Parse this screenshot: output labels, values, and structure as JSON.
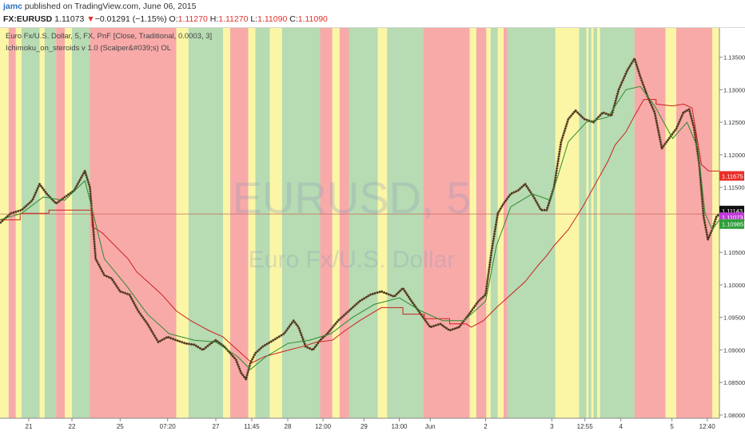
{
  "header": {
    "author": "jamc",
    "published": "published on TradingView.com, June 06, 2015",
    "symbol": "FX:EURUSD",
    "last": "1.11073",
    "change_arrow": "▼",
    "change": "−0.01291 (−1.15%)",
    "o_label": "O:",
    "o_value": "1.11270",
    "h_label": "H:",
    "h_value": "1.11270",
    "l_label": "L:",
    "l_value": "1.11090",
    "c_label": "C:",
    "c_value": "1.11090"
  },
  "legend": {
    "series_line": "Euro Fx/U.S. Dollar, 5, FX, PnF [Close, Traditional, 0.0003, 3]",
    "indicator_line": "Ichimoku_on_steroids v 1.0 (Scalper&#039;s) OL"
  },
  "watermark": {
    "symbol": "EURUSD, 5",
    "name": "Euro Fx/U.S. Dollar"
  },
  "colors": {
    "green_band": "#b7dbb2",
    "red_band": "#f8aaa9",
    "yellow_band": "#fbf6a6",
    "price": "#6b4a2a",
    "red_line": "#cc2020",
    "green_line": "#2e8b2e",
    "axis_bg": "#ffffff",
    "hline": "#c46a5a"
  },
  "chart_data": {
    "type": "line",
    "ylim": [
      1.0795,
      1.1395
    ],
    "y_ticks": [
      "1.13500",
      "1.13000",
      "1.12500",
      "1.12000",
      "1.11500",
      "1.11000",
      "1.10500",
      "1.10000",
      "1.09500",
      "1.09000",
      "1.08500",
      "1.08000"
    ],
    "x_ticks": [
      {
        "label": "21",
        "t": 0.04
      },
      {
        "label": "22",
        "t": 0.1
      },
      {
        "label": "25",
        "t": 0.167
      },
      {
        "label": "07:20",
        "t": 0.233
      },
      {
        "label": "27",
        "t": 0.3
      },
      {
        "label": "11:45",
        "t": 0.35
      },
      {
        "label": "28",
        "t": 0.4
      },
      {
        "label": "12:00",
        "t": 0.449
      },
      {
        "label": "29",
        "t": 0.506
      },
      {
        "label": "13:00",
        "t": 0.555
      },
      {
        "label": "Jun",
        "t": 0.598
      },
      {
        "label": "2",
        "t": 0.675
      },
      {
        "label": "3",
        "t": 0.767
      },
      {
        "label": "12:55",
        "t": 0.813
      },
      {
        "label": "4",
        "t": 0.863
      },
      {
        "label": "5",
        "t": 0.934
      },
      {
        "label": "12:40",
        "t": 0.983
      }
    ],
    "bands": [
      {
        "start": 0.0,
        "end": 0.012,
        "c": "yellow"
      },
      {
        "start": 0.012,
        "end": 0.022,
        "c": "red"
      },
      {
        "start": 0.022,
        "end": 0.03,
        "c": "yellow"
      },
      {
        "start": 0.03,
        "end": 0.055,
        "c": "green"
      },
      {
        "start": 0.055,
        "end": 0.062,
        "c": "yellow"
      },
      {
        "start": 0.062,
        "end": 0.078,
        "c": "green"
      },
      {
        "start": 0.078,
        "end": 0.09,
        "c": "red"
      },
      {
        "start": 0.09,
        "end": 0.1,
        "c": "yellow"
      },
      {
        "start": 0.1,
        "end": 0.125,
        "c": "green"
      },
      {
        "start": 0.125,
        "end": 0.245,
        "c": "red"
      },
      {
        "start": 0.245,
        "end": 0.262,
        "c": "yellow"
      },
      {
        "start": 0.262,
        "end": 0.31,
        "c": "green"
      },
      {
        "start": 0.31,
        "end": 0.32,
        "c": "yellow"
      },
      {
        "start": 0.32,
        "end": 0.345,
        "c": "red"
      },
      {
        "start": 0.345,
        "end": 0.355,
        "c": "yellow"
      },
      {
        "start": 0.355,
        "end": 0.375,
        "c": "green"
      },
      {
        "start": 0.375,
        "end": 0.392,
        "c": "yellow"
      },
      {
        "start": 0.392,
        "end": 0.445,
        "c": "green"
      },
      {
        "start": 0.445,
        "end": 0.462,
        "c": "red"
      },
      {
        "start": 0.462,
        "end": 0.472,
        "c": "yellow"
      },
      {
        "start": 0.472,
        "end": 0.485,
        "c": "red"
      },
      {
        "start": 0.485,
        "end": 0.525,
        "c": "green"
      },
      {
        "start": 0.525,
        "end": 0.538,
        "c": "yellow"
      },
      {
        "start": 0.538,
        "end": 0.588,
        "c": "green"
      },
      {
        "start": 0.588,
        "end": 0.653,
        "c": "red"
      },
      {
        "start": 0.653,
        "end": 0.662,
        "c": "yellow"
      },
      {
        "start": 0.662,
        "end": 0.676,
        "c": "red"
      },
      {
        "start": 0.676,
        "end": 0.682,
        "c": "yellow"
      },
      {
        "start": 0.682,
        "end": 0.692,
        "c": "green"
      },
      {
        "start": 0.692,
        "end": 0.7,
        "c": "yellow"
      },
      {
        "start": 0.7,
        "end": 0.705,
        "c": "red"
      },
      {
        "start": 0.705,
        "end": 0.772,
        "c": "green"
      },
      {
        "start": 0.772,
        "end": 0.805,
        "c": "yellow"
      },
      {
        "start": 0.805,
        "end": 0.815,
        "c": "green"
      },
      {
        "start": 0.815,
        "end": 0.818,
        "c": "yellow"
      },
      {
        "start": 0.818,
        "end": 0.822,
        "c": "green"
      },
      {
        "start": 0.822,
        "end": 0.825,
        "c": "yellow"
      },
      {
        "start": 0.825,
        "end": 0.83,
        "c": "green"
      },
      {
        "start": 0.83,
        "end": 0.834,
        "c": "yellow"
      },
      {
        "start": 0.834,
        "end": 0.882,
        "c": "green"
      },
      {
        "start": 0.882,
        "end": 0.925,
        "c": "red"
      },
      {
        "start": 0.925,
        "end": 0.94,
        "c": "yellow"
      },
      {
        "start": 0.94,
        "end": 0.99,
        "c": "red"
      },
      {
        "start": 0.99,
        "end": 1.0,
        "c": "yellow"
      }
    ],
    "series": [
      {
        "role": "price",
        "points": [
          [
            0.0,
            1.1095
          ],
          [
            0.015,
            1.111
          ],
          [
            0.03,
            1.1115
          ],
          [
            0.045,
            1.113
          ],
          [
            0.055,
            1.1155
          ],
          [
            0.065,
            1.114
          ],
          [
            0.078,
            1.1125
          ],
          [
            0.09,
            1.1135
          ],
          [
            0.103,
            1.1145
          ],
          [
            0.118,
            1.1175
          ],
          [
            0.125,
            1.115
          ],
          [
            0.133,
            1.104
          ],
          [
            0.145,
            1.1015
          ],
          [
            0.155,
            1.101
          ],
          [
            0.167,
            1.099
          ],
          [
            0.18,
            1.0985
          ],
          [
            0.192,
            1.096
          ],
          [
            0.205,
            1.094
          ],
          [
            0.22,
            1.0912
          ],
          [
            0.233,
            1.092
          ],
          [
            0.245,
            1.0915
          ],
          [
            0.258,
            1.091
          ],
          [
            0.27,
            1.0908
          ],
          [
            0.282,
            1.09
          ],
          [
            0.293,
            1.091
          ],
          [
            0.3,
            1.0915
          ],
          [
            0.312,
            1.0905
          ],
          [
            0.32,
            1.0895
          ],
          [
            0.328,
            1.0885
          ],
          [
            0.335,
            1.0865
          ],
          [
            0.342,
            1.0855
          ],
          [
            0.348,
            1.088
          ],
          [
            0.355,
            1.0895
          ],
          [
            0.365,
            1.0905
          ],
          [
            0.38,
            1.0915
          ],
          [
            0.395,
            1.0925
          ],
          [
            0.408,
            1.0945
          ],
          [
            0.415,
            1.0935
          ],
          [
            0.425,
            1.0905
          ],
          [
            0.435,
            1.09
          ],
          [
            0.445,
            1.0915
          ],
          [
            0.455,
            1.0925
          ],
          [
            0.47,
            1.0945
          ],
          [
            0.485,
            1.096
          ],
          [
            0.5,
            1.0975
          ],
          [
            0.515,
            1.0985
          ],
          [
            0.53,
            1.099
          ],
          [
            0.548,
            1.0982
          ],
          [
            0.56,
            1.0995
          ],
          [
            0.572,
            1.0975
          ],
          [
            0.585,
            1.0955
          ],
          [
            0.598,
            1.0935
          ],
          [
            0.612,
            1.094
          ],
          [
            0.625,
            1.093
          ],
          [
            0.638,
            1.0935
          ],
          [
            0.652,
            1.0955
          ],
          [
            0.665,
            1.0975
          ],
          [
            0.675,
            1.0985
          ],
          [
            0.683,
            1.105
          ],
          [
            0.692,
            1.111
          ],
          [
            0.7,
            1.1125
          ],
          [
            0.71,
            1.114
          ],
          [
            0.72,
            1.1145
          ],
          [
            0.73,
            1.1155
          ],
          [
            0.742,
            1.1135
          ],
          [
            0.752,
            1.1115
          ],
          [
            0.76,
            1.1115
          ],
          [
            0.77,
            1.115
          ],
          [
            0.78,
            1.122
          ],
          [
            0.79,
            1.1255
          ],
          [
            0.8,
            1.1268
          ],
          [
            0.812,
            1.1255
          ],
          [
            0.825,
            1.125
          ],
          [
            0.838,
            1.1265
          ],
          [
            0.85,
            1.126
          ],
          [
            0.86,
            1.13
          ],
          [
            0.872,
            1.133
          ],
          [
            0.882,
            1.1348
          ],
          [
            0.89,
            1.132
          ],
          [
            0.9,
            1.129
          ],
          [
            0.91,
            1.1265
          ],
          [
            0.92,
            1.121
          ],
          [
            0.93,
            1.1225
          ],
          [
            0.94,
            1.124
          ],
          [
            0.95,
            1.1265
          ],
          [
            0.958,
            1.127
          ],
          [
            0.965,
            1.124
          ],
          [
            0.972,
            1.1185
          ],
          [
            0.978,
            1.1105
          ],
          [
            0.984,
            1.107
          ],
          [
            0.99,
            1.1085
          ],
          [
            0.996,
            1.1105
          ],
          [
            1.0,
            1.1109
          ]
        ]
      },
      {
        "role": "green",
        "points": [
          [
            0.0,
            1.11
          ],
          [
            0.03,
            1.111
          ],
          [
            0.06,
            1.1135
          ],
          [
            0.09,
            1.113
          ],
          [
            0.118,
            1.116
          ],
          [
            0.125,
            1.113
          ],
          [
            0.145,
            1.104
          ],
          [
            0.175,
            1.1
          ],
          [
            0.205,
            1.0955
          ],
          [
            0.235,
            1.0925
          ],
          [
            0.27,
            1.0915
          ],
          [
            0.3,
            1.0912
          ],
          [
            0.33,
            1.089
          ],
          [
            0.348,
            1.087
          ],
          [
            0.37,
            1.089
          ],
          [
            0.4,
            1.091
          ],
          [
            0.43,
            1.0915
          ],
          [
            0.46,
            1.0925
          ],
          [
            0.49,
            1.095
          ],
          [
            0.52,
            1.097
          ],
          [
            0.555,
            1.098
          ],
          [
            0.585,
            1.096
          ],
          [
            0.615,
            1.0945
          ],
          [
            0.645,
            1.0945
          ],
          [
            0.675,
            1.0975
          ],
          [
            0.69,
            1.106
          ],
          [
            0.71,
            1.112
          ],
          [
            0.74,
            1.114
          ],
          [
            0.765,
            1.113
          ],
          [
            0.79,
            1.122
          ],
          [
            0.815,
            1.125
          ],
          [
            0.845,
            1.1258
          ],
          [
            0.87,
            1.13
          ],
          [
            0.89,
            1.1305
          ],
          [
            0.91,
            1.1275
          ],
          [
            0.935,
            1.1225
          ],
          [
            0.955,
            1.125
          ],
          [
            0.97,
            1.121
          ],
          [
            0.98,
            1.111
          ],
          [
            0.99,
            1.1085
          ],
          [
            1.0,
            1.11
          ]
        ]
      },
      {
        "role": "red",
        "points": [
          [
            0.0,
            1.11
          ],
          [
            0.028,
            1.11
          ],
          [
            0.028,
            1.111
          ],
          [
            0.068,
            1.111
          ],
          [
            0.068,
            1.1115
          ],
          [
            0.128,
            1.1115
          ],
          [
            0.128,
            1.109
          ],
          [
            0.142,
            1.108
          ],
          [
            0.16,
            1.106
          ],
          [
            0.178,
            1.104
          ],
          [
            0.19,
            1.102
          ],
          [
            0.205,
            1.1005
          ],
          [
            0.225,
            1.0985
          ],
          [
            0.245,
            1.096
          ],
          [
            0.265,
            1.0945
          ],
          [
            0.29,
            1.093
          ],
          [
            0.31,
            1.092
          ],
          [
            0.33,
            1.09
          ],
          [
            0.35,
            1.088
          ],
          [
            0.368,
            1.089
          ],
          [
            0.385,
            1.0895
          ],
          [
            0.402,
            1.09
          ],
          [
            0.42,
            1.0905
          ],
          [
            0.44,
            1.0912
          ],
          [
            0.462,
            1.0915
          ],
          [
            0.48,
            1.093
          ],
          [
            0.5,
            1.0945
          ],
          [
            0.515,
            1.0955
          ],
          [
            0.53,
            1.0965
          ],
          [
            0.56,
            1.0965
          ],
          [
            0.56,
            1.0955
          ],
          [
            0.59,
            1.0955
          ],
          [
            0.59,
            1.0948
          ],
          [
            0.625,
            1.0948
          ],
          [
            0.625,
            1.094
          ],
          [
            0.648,
            1.094
          ],
          [
            0.655,
            1.0935
          ],
          [
            0.672,
            1.0945
          ],
          [
            0.69,
            1.0965
          ],
          [
            0.71,
            1.0985
          ],
          [
            0.73,
            1.1005
          ],
          [
            0.748,
            1.103
          ],
          [
            0.76,
            1.1045
          ],
          [
            0.77,
            1.106
          ],
          [
            0.79,
            1.1085
          ],
          [
            0.81,
            1.112
          ],
          [
            0.83,
            1.116
          ],
          [
            0.845,
            1.119
          ],
          [
            0.855,
            1.1215
          ],
          [
            0.87,
            1.1235
          ],
          [
            0.882,
            1.126
          ],
          [
            0.895,
            1.1285
          ],
          [
            0.912,
            1.1285
          ],
          [
            0.912,
            1.1278
          ],
          [
            0.935,
            1.1275
          ],
          [
            0.95,
            1.1278
          ],
          [
            0.962,
            1.1272
          ],
          [
            0.975,
            1.1185
          ],
          [
            0.985,
            1.1175
          ],
          [
            1.0,
            1.1175
          ]
        ]
      }
    ],
    "last_price": 1.1109,
    "price_labels": [
      {
        "value": "1.11675",
        "y": 1.11675,
        "bg": "#e8302a",
        "fg": "#ffffff"
      },
      {
        "value": "1.11143",
        "y": 1.11143,
        "bg": "#111111",
        "fg": "#ffffff"
      },
      {
        "value": "1.11073",
        "y": 1.1104,
        "bg": "#c03ad8",
        "fg": "#ffffff"
      },
      {
        "value": "1.10985",
        "y": 1.10935,
        "bg": "#2f9e3a",
        "fg": "#ffffff"
      }
    ]
  }
}
